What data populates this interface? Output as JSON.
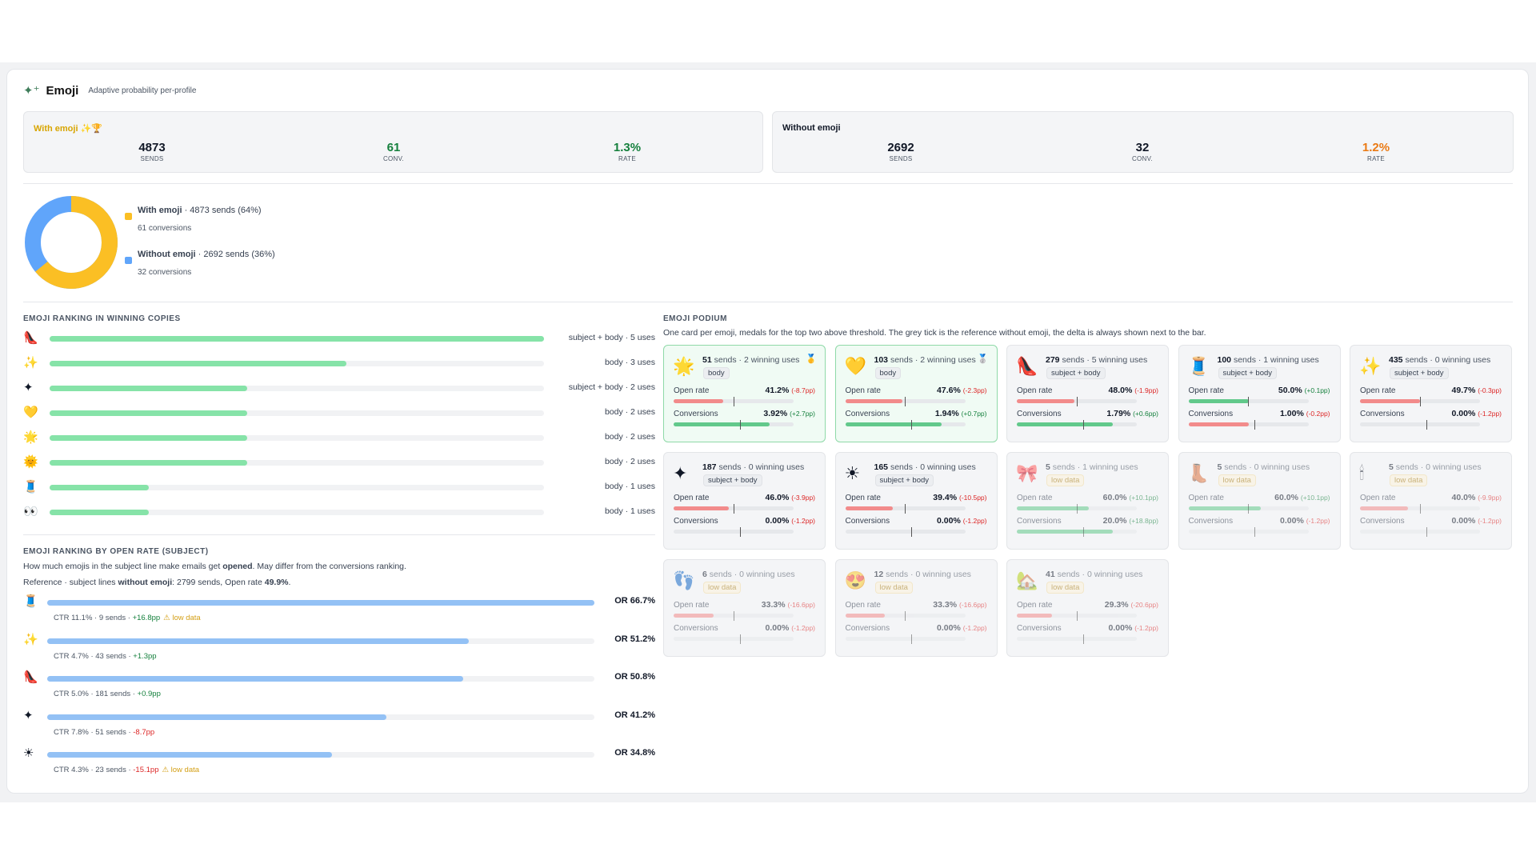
{
  "header": {
    "title": "Emoji",
    "subtitle": "Adaptive probability per-profile"
  },
  "summary": {
    "with": {
      "label": "With emoji ✨🏆",
      "sends": "4873",
      "conv": "61",
      "rate": "1.3%",
      "sends_key": "SENDS",
      "conv_key": "CONV.",
      "rate_key": "RATE",
      "rate_color": "#15803d"
    },
    "without": {
      "label": "Without emoji",
      "sends": "2692",
      "conv": "32",
      "rate": "1.2%",
      "sends_key": "SENDS",
      "conv_key": "CONV.",
      "rate_key": "RATE",
      "rate_color": "#ea7a14"
    }
  },
  "split": {
    "with": {
      "name": "With emoji",
      "detail": " · 4873 sends (64%)",
      "conv": "61 conversions",
      "share": 0.64,
      "color": "#fbbf24"
    },
    "without": {
      "name": "Without emoji",
      "detail": " · 2692 sends (36%)",
      "conv": "32 conversions",
      "share": 0.36,
      "color": "#60a5fa"
    }
  },
  "winning": {
    "title": "EMOJI RANKING IN WINNING COPIES",
    "rows": [
      {
        "emoji": "👠",
        "meta": "subject + body · 5 uses",
        "fraction": 1.0
      },
      {
        "emoji": "✨",
        "meta": "body · 3 uses",
        "fraction": 0.6
      },
      {
        "emoji": "✦",
        "meta": "subject + body · 2 uses",
        "fraction": 0.4
      },
      {
        "emoji": "💛",
        "meta": "body · 2 uses",
        "fraction": 0.4
      },
      {
        "emoji": "🌟",
        "meta": "body · 2 uses",
        "fraction": 0.4
      },
      {
        "emoji": "🌞",
        "meta": "body · 2 uses",
        "fraction": 0.4
      },
      {
        "emoji": "🧵",
        "meta": "body · 1 uses",
        "fraction": 0.2
      },
      {
        "emoji": "👀",
        "meta": "body · 1 uses",
        "fraction": 0.2
      }
    ]
  },
  "openrate": {
    "title": "EMOJI RANKING BY OPEN RATE (SUBJECT)",
    "desc_pre": "How much emojis in the subject line make emails get ",
    "desc_bold": "opened",
    "desc_post": ". May differ from the conversions ranking.",
    "ref_pre": "Reference · subject lines ",
    "ref_bold": "without emoji",
    "ref_post": ": 2799 sends, Open rate ",
    "ref_rate": "49.9%",
    "ref_end": ".",
    "rows": [
      {
        "emoji": "🧵",
        "or": "OR 66.7%",
        "fraction": 1.0,
        "ctr": "CTR 11.1% · 9 sends · ",
        "delta": "+16.8pp",
        "dir": "pos",
        "warn": "⚠ low data"
      },
      {
        "emoji": "✨",
        "or": "OR 51.2%",
        "fraction": 0.77,
        "ctr": "CTR 4.7% · 43 sends · ",
        "delta": "+1.3pp",
        "dir": "pos",
        "warn": ""
      },
      {
        "emoji": "👠",
        "or": "OR 50.8%",
        "fraction": 0.76,
        "ctr": "CTR 5.0% · 181 sends · ",
        "delta": "+0.9pp",
        "dir": "pos",
        "warn": ""
      },
      {
        "emoji": "✦",
        "or": "OR 41.2%",
        "fraction": 0.62,
        "ctr": "CTR 7.8% · 51 sends · ",
        "delta": "-8.7pp",
        "dir": "neg",
        "warn": ""
      },
      {
        "emoji": "☀",
        "or": "OR 34.8%",
        "fraction": 0.52,
        "ctr": "CTR 4.3% · 23 sends · ",
        "delta": "-15.1pp",
        "dir": "neg",
        "warn": "⚠ low data"
      }
    ]
  },
  "podium": {
    "title": "EMOJI PODIUM",
    "desc": "One card per emoji, medals for the top two above threshold. The grey tick is the reference without emoji, the delta is always shown next to the bar.",
    "open_label": "Open rate",
    "conv_label": "Conversions",
    "cards": [
      {
        "emoji": "🌟",
        "sends": "51",
        "wins": " sends · 2 winning uses",
        "medal": "🥇",
        "tag": "body",
        "low": false,
        "win": true,
        "open": "41.2%",
        "open_d": "(-8.7pp)",
        "open_dir": "neg",
        "open_f": 0.412,
        "conv": "3.92%",
        "conv_d": "(+2.7pp)",
        "conv_dir": "pos",
        "conv_f": 0.8
      },
      {
        "emoji": "💛",
        "sends": "103",
        "wins": " sends · 2 winning uses",
        "medal": "🥈",
        "tag": "body",
        "low": false,
        "win": true,
        "open": "47.6%",
        "open_d": "(-2.3pp)",
        "open_dir": "neg",
        "open_f": 0.476,
        "conv": "1.94%",
        "conv_d": "(+0.7pp)",
        "conv_dir": "pos",
        "conv_f": 0.8
      },
      {
        "emoji": "👠",
        "sends": "279",
        "wins": " sends · 5 winning uses",
        "medal": "",
        "tag": "subject + body",
        "low": false,
        "win": false,
        "open": "48.0%",
        "open_d": "(-1.9pp)",
        "open_dir": "neg",
        "open_f": 0.48,
        "conv": "1.79%",
        "conv_d": "(+0.6pp)",
        "conv_dir": "pos",
        "conv_f": 0.8
      },
      {
        "emoji": "🧵",
        "sends": "100",
        "wins": " sends · 1 winning uses",
        "medal": "",
        "tag": "subject + body",
        "low": false,
        "win": false,
        "open": "50.0%",
        "open_d": "(+0.1pp)",
        "open_dir": "pos",
        "open_f": 0.5,
        "conv": "1.00%",
        "conv_d": "(-0.2pp)",
        "conv_dir": "neg",
        "conv_f": 0.5
      },
      {
        "emoji": "✨",
        "sends": "435",
        "wins": " sends · 0 winning uses",
        "medal": "",
        "tag": "subject + body",
        "low": false,
        "win": false,
        "open": "49.7%",
        "open_d": "(-0.3pp)",
        "open_dir": "neg",
        "open_f": 0.497,
        "conv": "0.00%",
        "conv_d": "(-1.2pp)",
        "conv_dir": "neg",
        "conv_f": 0
      },
      {
        "emoji": "✦",
        "sends": "187",
        "wins": " sends · 0 winning uses",
        "medal": "",
        "tag": "subject + body",
        "low": false,
        "win": false,
        "open": "46.0%",
        "open_d": "(-3.9pp)",
        "open_dir": "neg",
        "open_f": 0.46,
        "conv": "0.00%",
        "conv_d": "(-1.2pp)",
        "conv_dir": "neg",
        "conv_f": 0
      },
      {
        "emoji": "☀",
        "sends": "165",
        "wins": " sends · 0 winning uses",
        "medal": "",
        "tag": "subject + body",
        "low": false,
        "win": false,
        "open": "39.4%",
        "open_d": "(-10.5pp)",
        "open_dir": "neg",
        "open_f": 0.394,
        "conv": "0.00%",
        "conv_d": "(-1.2pp)",
        "conv_dir": "neg",
        "conv_f": 0
      },
      {
        "emoji": "🎀",
        "sends": "5",
        "wins": " sends · 1 winning uses",
        "medal": "",
        "tag": "low data",
        "low": true,
        "win": false,
        "open": "60.0%",
        "open_d": "(+10.1pp)",
        "open_dir": "pos",
        "open_f": 0.6,
        "conv": "20.0%",
        "conv_d": "(+18.8pp)",
        "conv_dir": "pos",
        "conv_f": 0.8
      },
      {
        "emoji": "👢",
        "sends": "5",
        "wins": " sends · 0 winning uses",
        "medal": "",
        "tag": "low data",
        "low": true,
        "win": false,
        "open": "60.0%",
        "open_d": "(+10.1pp)",
        "open_dir": "pos",
        "open_f": 0.6,
        "conv": "0.00%",
        "conv_d": "(-1.2pp)",
        "conv_dir": "neg",
        "conv_f": 0
      },
      {
        "emoji": "🕯",
        "sends": "5",
        "wins": " sends · 0 winning uses",
        "medal": "",
        "tag": "low data",
        "low": true,
        "win": false,
        "open": "40.0%",
        "open_d": "(-9.9pp)",
        "open_dir": "neg",
        "open_f": 0.4,
        "conv": "0.00%",
        "conv_d": "(-1.2pp)",
        "conv_dir": "neg",
        "conv_f": 0
      },
      {
        "emoji": "👣",
        "sends": "6",
        "wins": " sends · 0 winning uses",
        "medal": "",
        "tag": "low data",
        "low": true,
        "win": false,
        "open": "33.3%",
        "open_d": "(-16.6pp)",
        "open_dir": "neg",
        "open_f": 0.333,
        "conv": "0.00%",
        "conv_d": "(-1.2pp)",
        "conv_dir": "neg",
        "conv_f": 0
      },
      {
        "emoji": "😍",
        "sends": "12",
        "wins": " sends · 0 winning uses",
        "medal": "",
        "tag": "low data",
        "low": true,
        "win": false,
        "open": "33.3%",
        "open_d": "(-16.6pp)",
        "open_dir": "neg",
        "open_f": 0.333,
        "conv": "0.00%",
        "conv_d": "(-1.2pp)",
        "conv_dir": "neg",
        "conv_f": 0
      },
      {
        "emoji": "🏡",
        "sends": "41",
        "wins": " sends · 0 winning uses",
        "medal": "",
        "tag": "low data",
        "low": true,
        "win": false,
        "open": "29.3%",
        "open_d": "(-20.6pp)",
        "open_dir": "neg",
        "open_f": 0.293,
        "conv": "0.00%",
        "conv_d": "(-1.2pp)",
        "conv_dir": "neg",
        "conv_f": 0
      }
    ]
  }
}
